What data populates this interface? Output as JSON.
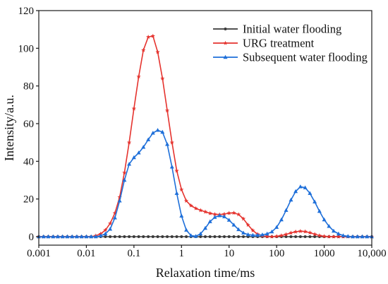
{
  "chart_data": {
    "type": "line",
    "xlabel": "Relaxation time/ms",
    "ylabel": "Intensity/a.u.",
    "xscale": "log",
    "xlim": [
      0.001,
      10000
    ],
    "ylim": [
      -4.5,
      120
    ],
    "x_ticks": [
      0.001,
      0.01,
      0.1,
      1,
      10,
      100,
      1000,
      10000
    ],
    "x_tick_labels": [
      "0.001",
      "0.01",
      "0.1",
      "1",
      "10",
      "100",
      "1000",
      "10,000"
    ],
    "y_ticks": [
      0,
      20,
      40,
      60,
      80,
      100,
      120
    ],
    "y_tick_labels": [
      "0",
      "20",
      "40",
      "60",
      "80",
      "100",
      "120"
    ],
    "grid": false,
    "legend_position": "top-right",
    "x": [
      0.001,
      0.00126,
      0.00158,
      0.002,
      0.00251,
      0.00316,
      0.00398,
      0.00501,
      0.00631,
      0.00794,
      0.01,
      0.0126,
      0.0158,
      0.02,
      0.0251,
      0.0316,
      0.0398,
      0.0501,
      0.0631,
      0.0794,
      0.1,
      0.126,
      0.158,
      0.2,
      0.251,
      0.316,
      0.398,
      0.501,
      0.631,
      0.794,
      1,
      1.26,
      1.58,
      2,
      2.51,
      3.16,
      3.98,
      5.01,
      6.31,
      7.94,
      10,
      12.6,
      15.8,
      20,
      25.1,
      31.6,
      39.8,
      50.1,
      63.1,
      79.4,
      100,
      126,
      158,
      200,
      251,
      316,
      398,
      501,
      631,
      794,
      1000,
      1260,
      1580,
      2000,
      2510,
      3160,
      3980,
      5010,
      6310,
      7940,
      10000
    ],
    "series": [
      {
        "name": "Initial water flooding",
        "color": "#3a3a3a",
        "marker": "circle",
        "values": [
          0,
          0,
          0,
          0,
          0,
          0,
          0,
          0,
          0,
          0,
          0,
          0,
          0,
          0,
          0,
          0,
          0,
          0,
          0,
          0,
          0,
          0,
          0,
          0,
          0,
          0,
          0,
          0,
          0,
          0,
          0,
          0,
          0,
          0,
          0,
          0,
          0,
          0,
          0,
          0,
          0,
          0,
          0,
          0,
          0,
          0,
          0,
          0,
          0,
          0,
          0,
          0,
          0,
          0,
          0,
          0,
          0,
          0,
          0,
          0,
          0,
          0,
          0,
          0,
          0,
          0,
          0,
          0,
          0,
          0,
          0
        ]
      },
      {
        "name": "URG treatment",
        "color": "#e5332e",
        "marker": "star",
        "values": [
          0,
          0,
          0,
          0,
          0,
          0,
          0,
          0,
          0,
          0,
          0,
          0,
          0.5,
          1.5,
          3.5,
          7,
          12.5,
          21,
          34,
          50,
          68,
          85,
          99,
          106,
          106.5,
          98,
          84,
          67,
          50,
          35,
          25,
          19,
          16.5,
          15,
          14,
          13.2,
          12.4,
          11.9,
          11.7,
          12,
          12.5,
          12.6,
          11.8,
          9.5,
          6.2,
          3.3,
          1.3,
          0.4,
          0.1,
          0,
          0.2,
          0.6,
          1.2,
          2,
          2.6,
          2.9,
          2.7,
          2.1,
          1.3,
          0.6,
          0.2,
          0,
          0,
          0,
          0,
          0,
          0,
          0,
          0,
          0,
          0
        ]
      },
      {
        "name": "Subsequent water flooding",
        "color": "#1e6fd9",
        "marker": "triangle",
        "values": [
          0,
          0,
          0,
          0,
          0,
          0,
          0,
          0,
          0,
          0,
          0,
          0,
          0,
          0.5,
          1.5,
          4,
          10,
          19,
          30,
          38.5,
          42,
          44.5,
          47.5,
          51.5,
          55,
          56.5,
          55.5,
          49,
          37,
          23,
          11,
          3.5,
          0.6,
          0.2,
          1.5,
          4.5,
          8,
          10.3,
          11.2,
          10.6,
          8.8,
          6.2,
          3.8,
          2,
          1.1,
          0.8,
          0.8,
          1,
          1.5,
          2.6,
          5,
          9,
          14,
          19.5,
          24,
          26.5,
          26,
          23,
          18.5,
          13.5,
          9,
          5.5,
          3,
          1.5,
          0.6,
          0.2,
          0,
          0,
          0,
          0,
          0
        ]
      }
    ]
  }
}
